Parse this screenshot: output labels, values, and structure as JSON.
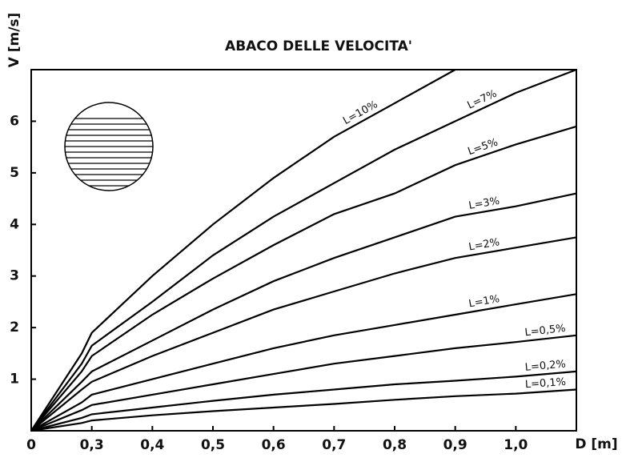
{
  "chart_data": {
    "type": "line",
    "title": "ABACO DELLE VELOCITA'",
    "x_label": "D [m]",
    "y_label": "V [m/s]",
    "x": [
      0,
      0.25,
      0.3,
      0.4,
      0.5,
      0.6,
      0.7,
      0.8,
      0.9,
      1.0,
      1.1
    ],
    "series": [
      {
        "name": "L=10%",
        "color": "#000000",
        "values": [
          0,
          1.5,
          1.9,
          3.0,
          4.0,
          4.9,
          5.7,
          6.35,
          7.0,
          null,
          null
        ]
      },
      {
        "name": "L=7%",
        "color": "#000000",
        "values": [
          0,
          1.3,
          1.65,
          2.5,
          3.4,
          4.15,
          4.8,
          5.45,
          6.0,
          6.55,
          7.0
        ]
      },
      {
        "name": "L=5%",
        "color": "#000000",
        "values": [
          0,
          1.15,
          1.45,
          2.25,
          2.95,
          3.6,
          4.2,
          4.6,
          5.15,
          5.55,
          5.9
        ]
      },
      {
        "name": "L=3%",
        "color": "#000000",
        "values": [
          0,
          0.95,
          1.15,
          1.75,
          2.35,
          2.9,
          3.35,
          3.75,
          4.15,
          4.35,
          4.6
        ]
      },
      {
        "name": "L=2%",
        "color": "#000000",
        "values": [
          0,
          0.8,
          0.95,
          1.45,
          1.9,
          2.35,
          2.7,
          3.05,
          3.35,
          3.55,
          3.75
        ]
      },
      {
        "name": "L=1%",
        "color": "#000000",
        "values": [
          0,
          0.55,
          0.7,
          1.0,
          1.3,
          1.6,
          1.85,
          2.05,
          2.25,
          2.45,
          2.65
        ]
      },
      {
        "name": "L=0,5%",
        "color": "#000000",
        "values": [
          0,
          0.4,
          0.5,
          0.7,
          0.9,
          1.1,
          1.3,
          1.45,
          1.6,
          1.72,
          1.85
        ]
      },
      {
        "name": "L=0,2%",
        "color": "#000000",
        "values": [
          0,
          0.25,
          0.32,
          0.45,
          0.58,
          0.7,
          0.8,
          0.9,
          0.97,
          1.05,
          1.15
        ]
      },
      {
        "name": "L=0,1%",
        "color": "#000000",
        "values": [
          0,
          0.15,
          0.2,
          0.3,
          0.38,
          0.45,
          0.52,
          0.6,
          0.67,
          0.72,
          0.8
        ]
      }
    ],
    "xlim": [
      0,
      1.1
    ],
    "xticks": [
      0,
      {
        "value": 0.3,
        "label": "0,3"
      },
      {
        "value": 0.4,
        "label": "0,4"
      },
      {
        "value": 0.5,
        "label": "0,5"
      },
      {
        "value": 0.6,
        "label": "0,6"
      },
      {
        "value": 0.7,
        "label": "0,7"
      },
      {
        "value": 0.8,
        "label": "0,8"
      },
      {
        "value": 0.9,
        "label": "0,9"
      },
      {
        "value": 1.0,
        "label": "1,0"
      }
    ],
    "ylim": [
      0,
      7
    ],
    "yticks": [
      1,
      2,
      3,
      4,
      5,
      6
    ]
  }
}
